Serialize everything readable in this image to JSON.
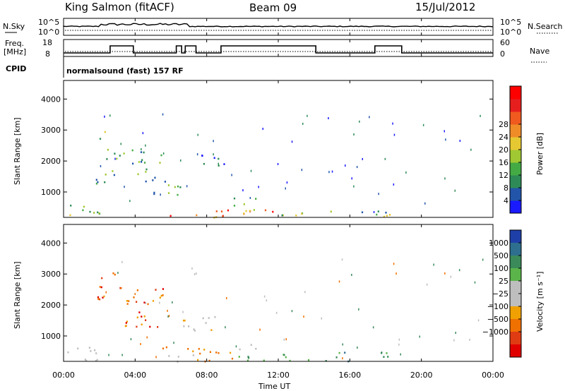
{
  "header": {
    "station": "King Salmon (fitACF)",
    "beam": "Beam 09",
    "date": "15/Jul/2012"
  },
  "status_panels": {
    "nsky_label": "N.Sky",
    "nsky_ticks": [
      "10^5",
      "10^0"
    ],
    "nsearch_label": "N.Search",
    "nsearch_ticks": [
      "10^5",
      "10^0"
    ],
    "freq_label_1": "Freq.",
    "freq_label_2": "[MHz]",
    "freq_ticks": [
      "18",
      "8"
    ],
    "nave_label": "Nave",
    "nave_ticks": [
      "60",
      "0"
    ],
    "cpid_label": "CPID",
    "cpid_text": "normalsound (fast) 157 RF",
    "freq_steps": [
      {
        "t": 0.0,
        "v": 10
      },
      {
        "t": 2.6,
        "v": 15
      },
      {
        "t": 3.9,
        "v": 10
      },
      {
        "t": 6.3,
        "v": 15
      },
      {
        "t": 6.6,
        "v": 10
      },
      {
        "t": 6.8,
        "v": 15
      },
      {
        "t": 7.4,
        "v": 10
      },
      {
        "t": 8.8,
        "v": 15
      },
      {
        "t": 14.1,
        "v": 10
      },
      {
        "t": 17.4,
        "v": 15
      },
      {
        "t": 18.9,
        "v": 10
      },
      {
        "t": 24.0,
        "v": 10
      }
    ]
  },
  "chart_data": [
    {
      "type": "heatmap",
      "name": "Power panel",
      "ylabel": "Slant Range [km]",
      "yticks": [
        1000,
        2000,
        3000,
        4000
      ],
      "ylim": [
        180,
        4600
      ],
      "xlim": [
        0,
        24
      ],
      "colorbar": {
        "label": "Power [dB]",
        "ticks": [
          "4",
          "8",
          "12",
          "16",
          "20",
          "24",
          "28"
        ],
        "colors": [
          "#1a1aff",
          "#2255aa",
          "#2e8b57",
          "#44aa44",
          "#a0c832",
          "#e6c832",
          "#f08c28",
          "#f05a1e",
          "#e61e1e",
          "#ff0000"
        ]
      },
      "echo_regions": [
        {
          "t0": 0.1,
          "t1": 2.0,
          "r0": 220,
          "r1": 700,
          "levels": [
            2,
            5
          ]
        },
        {
          "t0": 1.0,
          "t1": 3.0,
          "r0": 1200,
          "r1": 1450,
          "levels": [
            1,
            3
          ]
        },
        {
          "t0": 1.8,
          "t1": 2.3,
          "r0": 2500,
          "r1": 3150,
          "levels": [
            2,
            5
          ]
        },
        {
          "t0": 2.3,
          "t1": 5.5,
          "r0": 1500,
          "r1": 2400,
          "levels": [
            1,
            4
          ]
        },
        {
          "t0": 4.5,
          "t1": 6.5,
          "r0": 900,
          "r1": 1600,
          "levels": [
            1,
            4
          ]
        },
        {
          "t0": 5.5,
          "t1": 12.5,
          "r0": 200,
          "r1": 450,
          "levels": [
            5,
            9
          ]
        },
        {
          "t0": 7.5,
          "t1": 9.0,
          "r0": 1700,
          "r1": 2300,
          "levels": [
            0,
            2
          ]
        },
        {
          "t0": 9.5,
          "t1": 11.0,
          "r0": 400,
          "r1": 900,
          "levels": [
            2,
            5
          ]
        },
        {
          "t0": 12.0,
          "t1": 19.0,
          "r0": 200,
          "r1": 420,
          "levels": [
            1,
            5
          ]
        }
      ]
    },
    {
      "type": "heatmap",
      "name": "Velocity panel",
      "ylabel": "Slant Range [km]",
      "yticks": [
        1000,
        2000,
        3000,
        4000
      ],
      "ylim": [
        180,
        4600
      ],
      "xlim": [
        0,
        24
      ],
      "xticks": [
        "00:00",
        "04:00",
        "08:00",
        "12:00",
        "16:00",
        "20:00",
        "00:00"
      ],
      "xlabel": "Time UT",
      "colorbar": {
        "label": "Velocity [m s⁻¹]",
        "ticks": [
          "1000",
          "500",
          "100",
          "25",
          "−25",
          "−100",
          "−500",
          "−1000"
        ],
        "colors": [
          "#1f3fa8",
          "#2e6e8e",
          "#3a8a5a",
          "#5ab44a",
          "#bebebe",
          "#bebebe",
          "#f0a000",
          "#f07000",
          "#e03c14",
          "#e00000"
        ]
      },
      "echo_regions": [
        {
          "t0": 0.1,
          "t1": 2.0,
          "r0": 220,
          "r1": 700,
          "class": "ground"
        },
        {
          "t0": 1.8,
          "t1": 3.2,
          "r0": 2200,
          "r1": 3150,
          "class": "neg"
        },
        {
          "t0": 3.0,
          "t1": 5.6,
          "r0": 1300,
          "r1": 2600,
          "class": "neg"
        },
        {
          "t0": 5.4,
          "t1": 9.5,
          "r0": 200,
          "r1": 700,
          "class": "negweak"
        },
        {
          "t0": 6.5,
          "t1": 8.5,
          "r0": 1200,
          "r1": 1800,
          "class": "ground"
        },
        {
          "t0": 9.5,
          "t1": 19.0,
          "r0": 200,
          "r1": 500,
          "class": "pos"
        },
        {
          "t0": 9.8,
          "t1": 11.0,
          "r0": 500,
          "r1": 900,
          "class": "ground"
        }
      ]
    }
  ]
}
